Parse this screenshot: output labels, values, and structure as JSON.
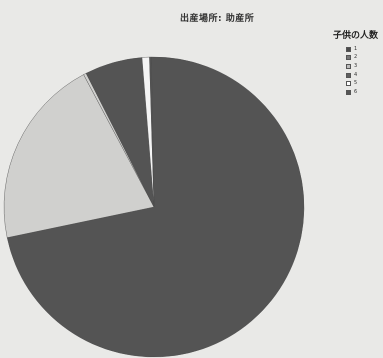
{
  "chart_data": {
    "type": "pie",
    "title": "出産場所: 助産所",
    "legend": {
      "title": "子供の人数",
      "placement": "right",
      "entries": [
        "1",
        "2",
        "3",
        "4",
        "5",
        "6"
      ]
    },
    "categories": [
      "1",
      "2",
      "3",
      "4",
      "5",
      "6"
    ],
    "values": [
      72.0,
      20.5,
      0.3,
      6.2,
      0.8,
      0.2
    ],
    "unit": "%",
    "start_angle_deg": -1,
    "colors": [
      "#545454",
      "#d0d0ce",
      "#d0d0ce",
      "#545454",
      "#f4f4f4",
      "#545454"
    ],
    "legend_colors": [
      "#4a4a4a",
      "#777777",
      "#bdbdbd",
      "#5e5e5e",
      "#ffffff",
      "#555555"
    ]
  }
}
